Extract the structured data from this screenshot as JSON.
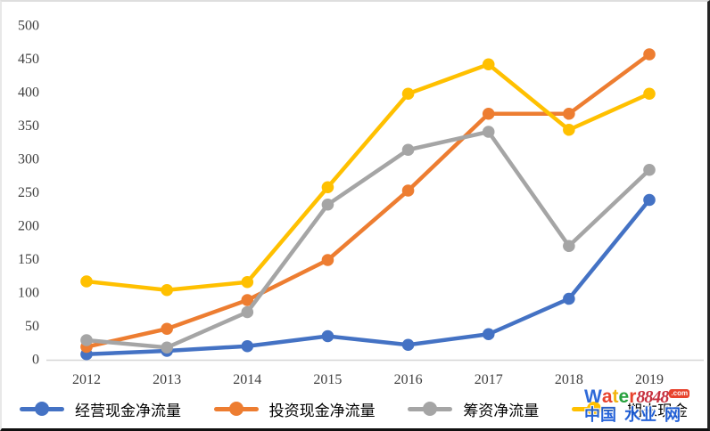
{
  "chart_data": {
    "type": "line",
    "title": "",
    "xlabel": "",
    "ylabel": "",
    "categories": [
      "2012",
      "2013",
      "2014",
      "2015",
      "2016",
      "2017",
      "2018",
      "2019"
    ],
    "series": [
      {
        "name": "经营现金净流量",
        "color": "#4472C4",
        "values": [
          7,
          12,
          19,
          34,
          21,
          37,
          90,
          238
        ]
      },
      {
        "name": "投资现金净流量",
        "color": "#ED7D31",
        "values": [
          18,
          45,
          88,
          148,
          252,
          367,
          367,
          456
        ]
      },
      {
        "name": "筹资净流量",
        "color": "#A5A5A5",
        "values": [
          28,
          17,
          70,
          231,
          313,
          340,
          169,
          283
        ]
      },
      {
        "name": "期末现金",
        "color": "#FFC000",
        "values": [
          116,
          103,
          115,
          257,
          397,
          441,
          343,
          397
        ]
      }
    ],
    "ylim": [
      0,
      500
    ],
    "ytick_step": 50,
    "grid": false,
    "legend_position": "bottom",
    "axis_line_color": "#d6d6d6",
    "tick_label_color": "#3f3f3f"
  },
  "watermark": {
    "word_letters": [
      {
        "ch": "W",
        "color": "#2e6ad8"
      },
      {
        "ch": "a",
        "color": "#e8432d"
      },
      {
        "ch": "t",
        "color": "#f2b50f"
      },
      {
        "ch": "e",
        "color": "#27a13d"
      },
      {
        "ch": "r",
        "color": "#e8432d"
      }
    ],
    "number": "8848",
    "tld": ".com",
    "site_words": [
      "中国",
      "水业",
      "网"
    ],
    "site_color": "#1557d6"
  }
}
